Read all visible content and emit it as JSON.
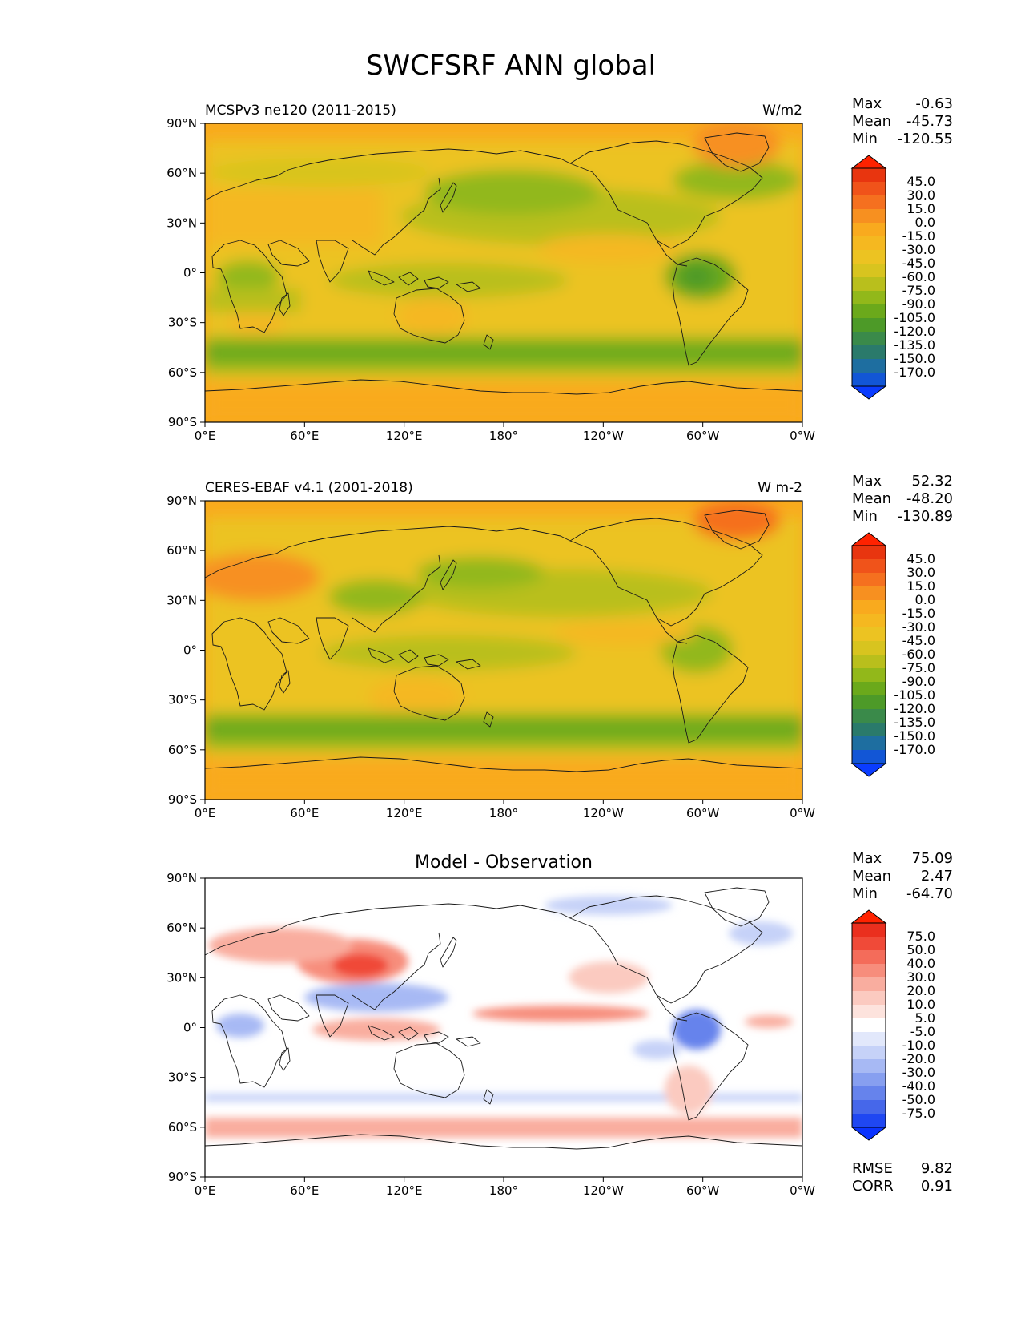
{
  "figure": {
    "title": "SWCFSRF ANN global"
  },
  "axes": {
    "lat_ticks": [
      "90°N",
      "60°N",
      "30°N",
      "0°",
      "30°S",
      "60°S",
      "90°S"
    ],
    "lon_ticks": [
      "0°E",
      "60°E",
      "120°E",
      "180°",
      "120°W",
      "60°W",
      "0°W"
    ]
  },
  "panels": [
    {
      "left_title": "MCSPv3 ne120 (2011-2015)",
      "center_title": "",
      "units": "W/m2",
      "stats": [
        {
          "label": "Max",
          "value": "-0.63"
        },
        {
          "label": "Mean",
          "value": "-45.73"
        },
        {
          "label": "Min",
          "value": "-120.55"
        }
      ],
      "colorbar": {
        "labels": [
          "45.0",
          "30.0",
          "15.0",
          "0.0",
          "-15.0",
          "-30.0",
          "-45.0",
          "-60.0",
          "-75.0",
          "-90.0",
          "-105.0",
          "-120.0",
          "-135.0",
          "-150.0",
          "-170.0"
        ],
        "colors": [
          "#e8350f",
          "#f0531a",
          "#f5701f",
          "#f79020",
          "#f9aa1e",
          "#f5b820",
          "#ecc322",
          "#d8c41f",
          "#b9bf1c",
          "#92b81a",
          "#6ba91b",
          "#4d9a28",
          "#3a8a4a",
          "#2a7a6b",
          "#1e6ea0",
          "#1256d6"
        ],
        "top_color": "#ff2200",
        "bottom_color": "#0a3cff"
      }
    },
    {
      "left_title": "CERES-EBAF v4.1 (2001-2018)",
      "center_title": "",
      "units": "W m-2",
      "stats": [
        {
          "label": "Max",
          "value": "52.32"
        },
        {
          "label": "Mean",
          "value": "-48.20"
        },
        {
          "label": "Min",
          "value": "-130.89"
        }
      ],
      "colorbar": {
        "labels": [
          "45.0",
          "30.0",
          "15.0",
          "0.0",
          "-15.0",
          "-30.0",
          "-45.0",
          "-60.0",
          "-75.0",
          "-90.0",
          "-105.0",
          "-120.0",
          "-135.0",
          "-150.0",
          "-170.0"
        ],
        "colors": [
          "#e8350f",
          "#f0531a",
          "#f5701f",
          "#f79020",
          "#f9aa1e",
          "#f5b820",
          "#ecc322",
          "#d8c41f",
          "#b9bf1c",
          "#92b81a",
          "#6ba91b",
          "#4d9a28",
          "#3a8a4a",
          "#2a7a6b",
          "#1e6ea0",
          "#1256d6"
        ],
        "top_color": "#ff2200",
        "bottom_color": "#0a3cff"
      }
    },
    {
      "left_title": "",
      "center_title": "Model - Observation",
      "units": "",
      "stats": [
        {
          "label": "Max",
          "value": "75.09"
        },
        {
          "label": "Mean",
          "value": "2.47"
        },
        {
          "label": "Min",
          "value": "-64.70"
        }
      ],
      "colorbar": {
        "labels": [
          "75.0",
          "50.0",
          "40.0",
          "30.0",
          "20.0",
          "10.0",
          "5.0",
          "-5.0",
          "-10.0",
          "-20.0",
          "-30.0",
          "-40.0",
          "-50.0",
          "-75.0"
        ],
        "colors": [
          "#ea2f1e",
          "#f04a38",
          "#f46c5a",
          "#f78d7c",
          "#f9ad9f",
          "#fbcac0",
          "#fde3dd",
          "#ffffff",
          "#e2e8fb",
          "#c6d2f8",
          "#a7b9f4",
          "#879ff0",
          "#6683ec",
          "#4667ea",
          "#1f47f2"
        ],
        "top_color": "#ff2200",
        "bottom_color": "#0a33ff"
      },
      "extra_stats": [
        {
          "label": "RMSE",
          "value": "9.82"
        },
        {
          "label": "CORR",
          "value": "0.91"
        }
      ]
    }
  ],
  "colors": {
    "field_base_orange": "#f9aa1e",
    "field_yellow": "#ecc322",
    "field_green": "#92b81a",
    "field_dark_green": "#4d9a28",
    "diff_red": "#f46c5a",
    "diff_blue": "#879ff0",
    "coast": "#1a1a1a"
  }
}
